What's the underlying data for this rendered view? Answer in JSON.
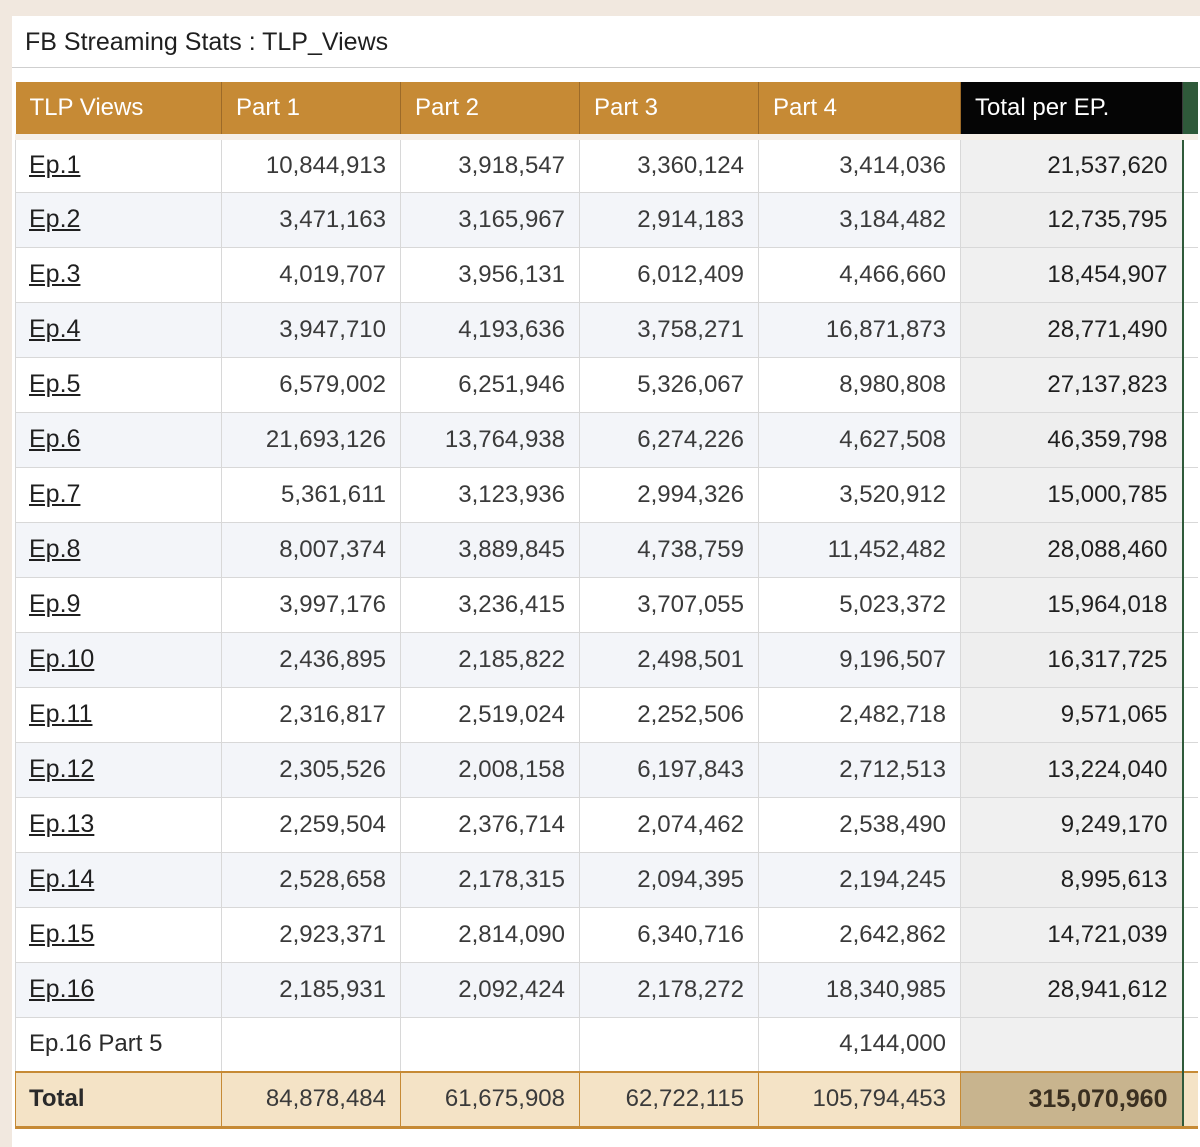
{
  "title": "FB Streaming Stats : TLP_Views",
  "colors": {
    "header_gold": "#c68a35",
    "header_black": "#050505",
    "total_row": "#f4e3c6",
    "grand_total": "#c8b48e",
    "accent_green": "#2f5a3a"
  },
  "table": {
    "headers": [
      "TLP Views",
      "Part 1",
      "Part 2",
      "Part 3",
      "Part 4",
      "Total per EP."
    ],
    "rows": [
      {
        "episode": "Ep.1",
        "link": true,
        "p1": "10,844,913",
        "p2": "3,918,547",
        "p3": "3,360,124",
        "p4": "3,414,036",
        "total": "21,537,620"
      },
      {
        "episode": "Ep.2",
        "link": true,
        "p1": "3,471,163",
        "p2": "3,165,967",
        "p3": "2,914,183",
        "p4": "3,184,482",
        "total": "12,735,795"
      },
      {
        "episode": "Ep.3",
        "link": true,
        "p1": "4,019,707",
        "p2": "3,956,131",
        "p3": "6,012,409",
        "p4": "4,466,660",
        "total": "18,454,907"
      },
      {
        "episode": "Ep.4",
        "link": true,
        "p1": "3,947,710",
        "p2": "4,193,636",
        "p3": "3,758,271",
        "p4": "16,871,873",
        "total": "28,771,490"
      },
      {
        "episode": "Ep.5",
        "link": true,
        "p1": "6,579,002",
        "p2": "6,251,946",
        "p3": "5,326,067",
        "p4": "8,980,808",
        "total": "27,137,823"
      },
      {
        "episode": "Ep.6",
        "link": true,
        "p1": "21,693,126",
        "p2": "13,764,938",
        "p3": "6,274,226",
        "p4": "4,627,508",
        "total": "46,359,798"
      },
      {
        "episode": "Ep.7",
        "link": true,
        "p1": "5,361,611",
        "p2": "3,123,936",
        "p3": "2,994,326",
        "p4": "3,520,912",
        "total": "15,000,785"
      },
      {
        "episode": "Ep.8",
        "link": true,
        "p1": "8,007,374",
        "p2": "3,889,845",
        "p3": "4,738,759",
        "p4": "11,452,482",
        "total": "28,088,460"
      },
      {
        "episode": "Ep.9",
        "link": true,
        "p1": "3,997,176",
        "p2": "3,236,415",
        "p3": "3,707,055",
        "p4": "5,023,372",
        "total": "15,964,018"
      },
      {
        "episode": "Ep.10",
        "link": true,
        "p1": "2,436,895",
        "p2": "2,185,822",
        "p3": "2,498,501",
        "p4": "9,196,507",
        "total": "16,317,725"
      },
      {
        "episode": "Ep.11",
        "link": true,
        "p1": "2,316,817",
        "p2": "2,519,024",
        "p3": "2,252,506",
        "p4": "2,482,718",
        "total": "9,571,065"
      },
      {
        "episode": "Ep.12",
        "link": true,
        "p1": "2,305,526",
        "p2": "2,008,158",
        "p3": "6,197,843",
        "p4": "2,712,513",
        "total": "13,224,040"
      },
      {
        "episode": "Ep.13",
        "link": true,
        "p1": "2,259,504",
        "p2": "2,376,714",
        "p3": "2,074,462",
        "p4": "2,538,490",
        "total": "9,249,170"
      },
      {
        "episode": "Ep.14",
        "link": true,
        "p1": "2,528,658",
        "p2": "2,178,315",
        "p3": "2,094,395",
        "p4": "2,194,245",
        "total": "8,995,613"
      },
      {
        "episode": "Ep.15",
        "link": true,
        "p1": "2,923,371",
        "p2": "2,814,090",
        "p3": "6,340,716",
        "p4": "2,642,862",
        "total": "14,721,039"
      },
      {
        "episode": "Ep.16",
        "link": true,
        "p1": "2,185,931",
        "p2": "2,092,424",
        "p3": "2,178,272",
        "p4": "18,340,985",
        "total": "28,941,612"
      },
      {
        "episode": "Ep.16 Part 5",
        "link": false,
        "p1": "",
        "p2": "",
        "p3": "",
        "p4": "4,144,000",
        "total": ""
      }
    ],
    "totals": {
      "label": "Total",
      "p1": "84,878,484",
      "p2": "61,675,908",
      "p3": "62,722,115",
      "p4": "105,794,453",
      "grand": "315,070,960"
    }
  }
}
